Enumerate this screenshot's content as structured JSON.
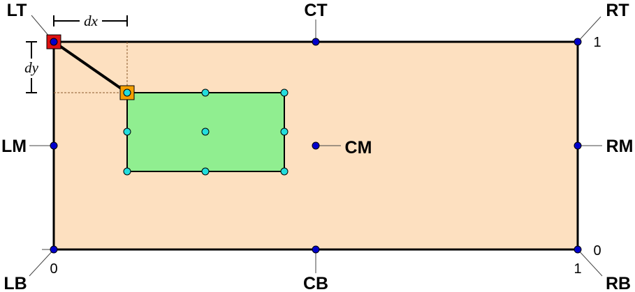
{
  "anchors": {
    "lt": "LT",
    "ct": "CT",
    "rt": "RT",
    "lm": "LM",
    "cm": "CM",
    "rm": "RM",
    "lb": "LB",
    "cb": "CB",
    "rb": "RB"
  },
  "axis_ticks": {
    "top_right": "1",
    "bottom_right_y": "0",
    "bottom_left_x": "0",
    "bottom_right_x": "1"
  },
  "offsets": {
    "dx": "dx",
    "dy": "dy"
  },
  "colors": {
    "outer_fill": "#fde0c0",
    "inner_fill": "#90ee90",
    "anchor_dot": "#0000cc",
    "inner_dot": "#22dddd",
    "origin_marker": "#dd1111",
    "child_marker": "#f5a000"
  }
}
